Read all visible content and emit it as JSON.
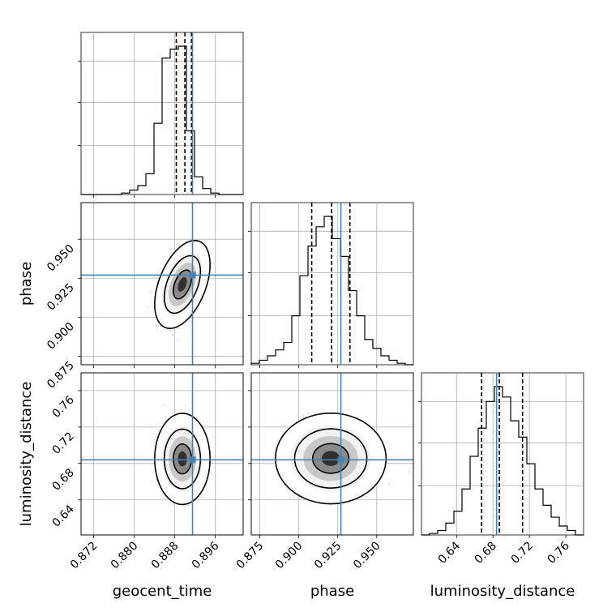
{
  "chart_data": {
    "type": "corner",
    "parameters": [
      "geocent_time",
      "phase",
      "luminosity_distance"
    ],
    "axis_labels": {
      "x": [
        "geocent_time",
        "phase",
        "luminosity_distance"
      ],
      "y_rows": [
        "",
        "phase",
        "luminosity_distance"
      ]
    },
    "ranges": {
      "geocent_time": [
        0.8695,
        0.9015
      ],
      "phase": [
        0.8695,
        0.9735
      ],
      "luminosity_distance": [
        0.6015,
        0.7795
      ]
    },
    "ticks": {
      "geocent_time": [
        "0.872",
        "0.880",
        "0.888",
        "0.896"
      ],
      "phase": [
        "0.875",
        "0.900",
        "0.925",
        "0.950"
      ],
      "luminosity_distance": [
        "0.64",
        "0.68",
        "0.72",
        "0.76"
      ]
    },
    "truths": {
      "geocent_time": 0.8915,
      "phase": 0.927,
      "luminosity_distance": 0.684
    },
    "quantiles": {
      "geocent_time": [
        0.8883,
        0.89,
        0.8913
      ],
      "phase": [
        0.9083,
        0.921,
        0.9328
      ],
      "luminosity_distance": [
        0.6675,
        0.687,
        0.7125
      ]
    },
    "hist_1d": {
      "geocent_time": {
        "edges": [
          0.8695,
          0.8711,
          0.8727,
          0.8743,
          0.8759,
          0.8775,
          0.8791,
          0.8807,
          0.8823,
          0.8839,
          0.8855,
          0.8871,
          0.8887,
          0.8903,
          0.8919,
          0.8935,
          0.8951,
          0.8967,
          0.8983,
          0.8999,
          0.9015
        ],
        "counts": [
          0,
          0,
          0,
          0,
          0,
          1,
          3,
          6,
          14,
          48,
          92,
          98,
          100,
          43,
          12,
          4,
          1,
          0,
          0,
          0
        ]
      },
      "phase": {
        "edges": [
          0.8695,
          0.8747,
          0.8799,
          0.8851,
          0.8903,
          0.8955,
          0.9007,
          0.9059,
          0.9111,
          0.9163,
          0.9215,
          0.9267,
          0.9319,
          0.9371,
          0.9423,
          0.9475,
          0.9527,
          0.9579,
          0.9631,
          0.9683,
          0.9735
        ],
        "counts": [
          1,
          3,
          6,
          10,
          15,
          33,
          60,
          80,
          93,
          100,
          85,
          73,
          50,
          33,
          17,
          11,
          6,
          3,
          1,
          0
        ]
      },
      "luminosity_distance": {
        "edges": [
          0.6015,
          0.6104,
          0.6193,
          0.6282,
          0.6371,
          0.646,
          0.6549,
          0.6638,
          0.6727,
          0.6816,
          0.6905,
          0.6994,
          0.7083,
          0.7172,
          0.7261,
          0.735,
          0.7439,
          0.7528,
          0.7617,
          0.7706,
          0.7795
        ],
        "counts": [
          0,
          1,
          3,
          8,
          16,
          31,
          53,
          72,
          90,
          100,
          93,
          77,
          66,
          48,
          31,
          20,
          12,
          6,
          3,
          0
        ]
      }
    },
    "gaussian_2d": {
      "geocent_time_phase": {
        "center": [
          0.8895,
          0.921
        ],
        "sigma": [
          0.0018,
          0.0093
        ],
        "rho": 0.45,
        "levels": [
          0.39,
          0.86,
          0.99
        ]
      },
      "geocent_time_luminosity_distance": {
        "center": [
          0.8895,
          0.685
        ],
        "sigma": [
          0.0018,
          0.0165
        ],
        "rho": 0.0,
        "levels": [
          0.39,
          0.86,
          0.99
        ]
      },
      "phase_luminosity_distance": {
        "center": [
          0.9205,
          0.6855
        ],
        "sigma": [
          0.0117,
          0.0164
        ],
        "rho": 0.0,
        "levels": [
          0.39,
          0.86,
          0.99
        ]
      }
    },
    "grid": true
  }
}
